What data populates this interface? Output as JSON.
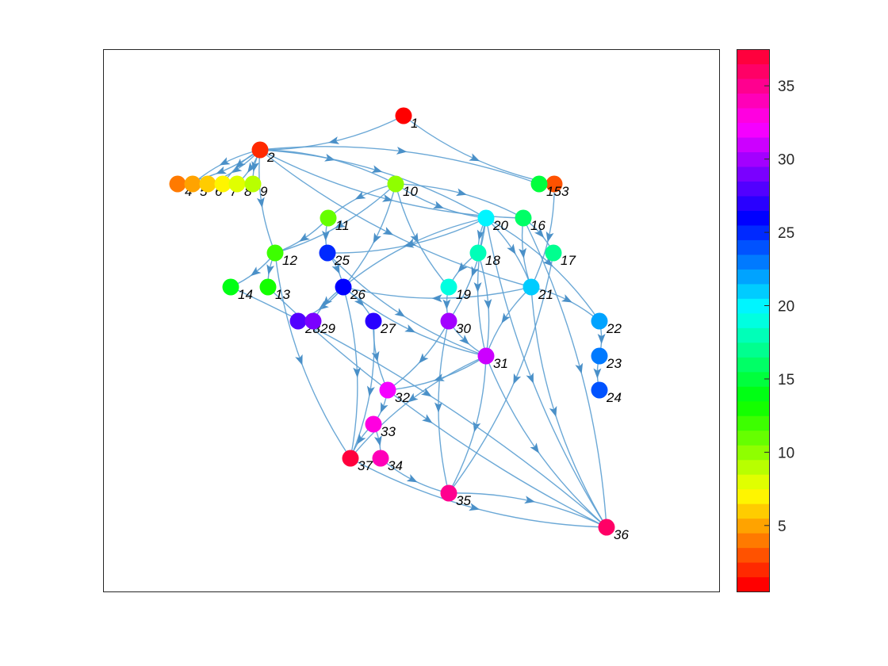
{
  "graph": {
    "nodes": [
      {
        "id": "1",
        "label": "1",
        "value": 1
      },
      {
        "id": "2",
        "label": "2",
        "value": 2
      },
      {
        "id": "3",
        "label": "3",
        "value": 3
      },
      {
        "id": "4",
        "label": "4",
        "value": 4
      },
      {
        "id": "5",
        "label": "5",
        "value": 5
      },
      {
        "id": "6",
        "label": "6",
        "value": 6
      },
      {
        "id": "7",
        "label": "7",
        "value": 7
      },
      {
        "id": "8",
        "label": "8",
        "value": 8
      },
      {
        "id": "9",
        "label": "9",
        "value": 9
      },
      {
        "id": "10",
        "label": "10",
        "value": 10
      },
      {
        "id": "11",
        "label": "11",
        "value": 11
      },
      {
        "id": "12",
        "label": "12",
        "value": 12
      },
      {
        "id": "13",
        "label": "13",
        "value": 13
      },
      {
        "id": "14",
        "label": "14",
        "value": 14
      },
      {
        "id": "15",
        "label": "15",
        "value": 15
      },
      {
        "id": "16",
        "label": "16",
        "value": 16
      },
      {
        "id": "17",
        "label": "17",
        "value": 17
      },
      {
        "id": "18",
        "label": "18",
        "value": 18
      },
      {
        "id": "19",
        "label": "19",
        "value": 19
      },
      {
        "id": "20",
        "label": "20",
        "value": 20
      },
      {
        "id": "21",
        "label": "21",
        "value": 21
      },
      {
        "id": "22",
        "label": "22",
        "value": 22
      },
      {
        "id": "23",
        "label": "23",
        "value": 23
      },
      {
        "id": "24",
        "label": "24",
        "value": 24
      },
      {
        "id": "25",
        "label": "25",
        "value": 25
      },
      {
        "id": "26",
        "label": "26",
        "value": 26
      },
      {
        "id": "27",
        "label": "27",
        "value": 27
      },
      {
        "id": "28",
        "label": "28",
        "value": 28
      },
      {
        "id": "29",
        "label": "29",
        "value": 29
      },
      {
        "id": "30",
        "label": "30",
        "value": 30
      },
      {
        "id": "31",
        "label": "31",
        "value": 31
      },
      {
        "id": "32",
        "label": "32",
        "value": 32
      },
      {
        "id": "33",
        "label": "33",
        "value": 33
      },
      {
        "id": "34",
        "label": "34",
        "value": 34
      },
      {
        "id": "35",
        "label": "35",
        "value": 35
      },
      {
        "id": "36",
        "label": "36",
        "value": 36
      },
      {
        "id": "37",
        "label": "37",
        "value": 37
      }
    ],
    "edges": [
      [
        "1",
        "2"
      ],
      [
        "1",
        "3"
      ],
      [
        "2",
        "4"
      ],
      [
        "2",
        "5"
      ],
      [
        "2",
        "6"
      ],
      [
        "2",
        "7"
      ],
      [
        "2",
        "8"
      ],
      [
        "2",
        "9"
      ],
      [
        "2",
        "10"
      ],
      [
        "2",
        "12"
      ],
      [
        "2",
        "15"
      ],
      [
        "2",
        "16"
      ],
      [
        "2",
        "20"
      ],
      [
        "2",
        "21"
      ],
      [
        "3",
        "21"
      ],
      [
        "10",
        "11"
      ],
      [
        "10",
        "12"
      ],
      [
        "10",
        "20"
      ],
      [
        "10",
        "16"
      ],
      [
        "10",
        "19"
      ],
      [
        "10",
        "26"
      ],
      [
        "11",
        "25"
      ],
      [
        "11",
        "12"
      ],
      [
        "12",
        "13"
      ],
      [
        "12",
        "14"
      ],
      [
        "12",
        "37"
      ],
      [
        "20",
        "25"
      ],
      [
        "20",
        "26"
      ],
      [
        "20",
        "30"
      ],
      [
        "20",
        "18"
      ],
      [
        "20",
        "21"
      ],
      [
        "20",
        "31"
      ],
      [
        "20",
        "22"
      ],
      [
        "20",
        "36"
      ],
      [
        "16",
        "17"
      ],
      [
        "16",
        "21"
      ],
      [
        "16",
        "36"
      ],
      [
        "18",
        "19"
      ],
      [
        "18",
        "31"
      ],
      [
        "19",
        "30"
      ],
      [
        "21",
        "26"
      ],
      [
        "21",
        "31"
      ],
      [
        "21",
        "22"
      ],
      [
        "21",
        "36"
      ],
      [
        "22",
        "23"
      ],
      [
        "23",
        "24"
      ],
      [
        "25",
        "26"
      ],
      [
        "25",
        "31"
      ],
      [
        "26",
        "28"
      ],
      [
        "26",
        "29"
      ],
      [
        "26",
        "27"
      ],
      [
        "26",
        "31"
      ],
      [
        "26",
        "37"
      ],
      [
        "27",
        "32"
      ],
      [
        "27",
        "37"
      ],
      [
        "30",
        "31"
      ],
      [
        "30",
        "32"
      ],
      [
        "30",
        "35"
      ],
      [
        "31",
        "32"
      ],
      [
        "31",
        "37"
      ],
      [
        "31",
        "35"
      ],
      [
        "31",
        "36"
      ],
      [
        "32",
        "33"
      ],
      [
        "33",
        "37"
      ],
      [
        "33",
        "34"
      ],
      [
        "34",
        "35"
      ],
      [
        "35",
        "36"
      ],
      [
        "13",
        "36"
      ],
      [
        "14",
        "36"
      ],
      [
        "37",
        "36"
      ],
      [
        "17",
        "35"
      ]
    ]
  },
  "colorbar": {
    "colormap": "hsv",
    "min": 1,
    "max": 37,
    "levels": 37,
    "ticks": [
      5,
      10,
      15,
      20,
      25,
      30,
      35
    ],
    "tick_labels": [
      "5",
      "10",
      "15",
      "20",
      "25",
      "30",
      "35"
    ]
  },
  "colors": {
    "edge": "#5b9fd2",
    "arrow": "#4a90c8",
    "axes_frame": "#262626"
  }
}
